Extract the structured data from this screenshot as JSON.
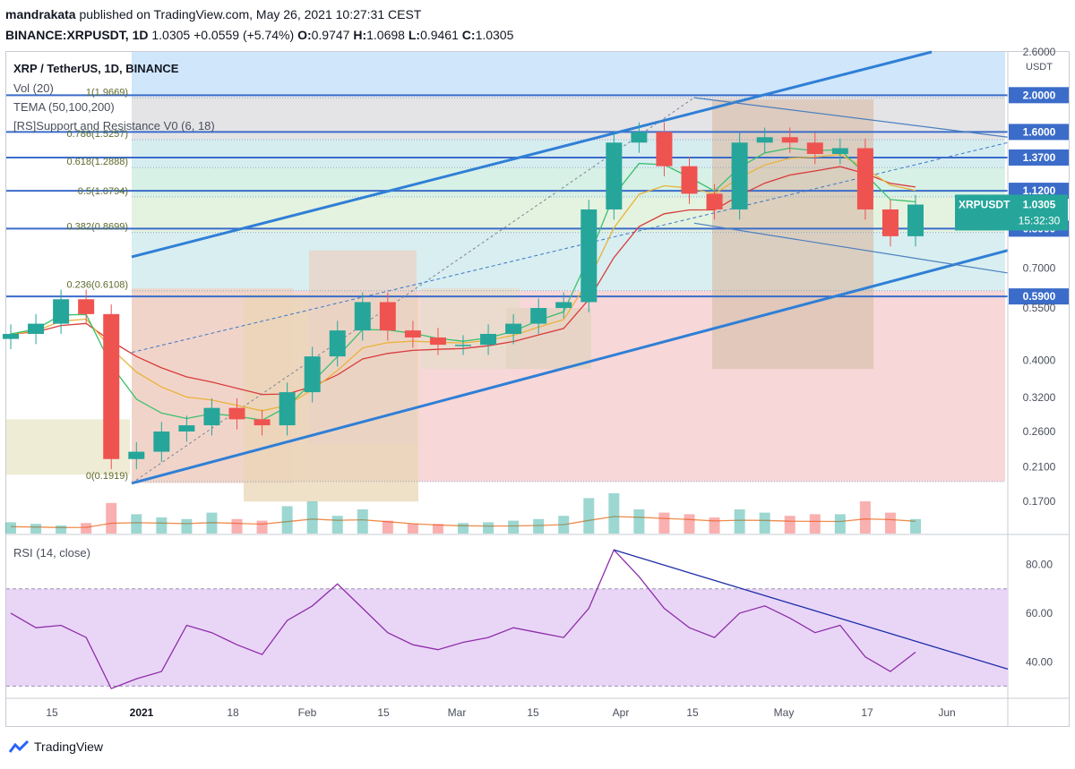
{
  "header": {
    "user": "mandrakata",
    "published_text": "published on TradingView.com, May 26, 2021 10:27:31 CEST",
    "symbol_line": "BINANCE:XRPUSDT, 1D",
    "last": "1.0305",
    "change": "+0.0559 (+5.74%)",
    "o_label": "O:",
    "o": "0.9747",
    "h_label": "H:",
    "h": "1.0698",
    "l_label": "L:",
    "l": "0.9461",
    "c_label": "C:",
    "c": "1.0305"
  },
  "legend": {
    "title": "XRP / TetherUS, 1D, BINANCE",
    "vol": "Vol (20)",
    "tema": "TEMA (50,100,200)",
    "sr": "[RS]Support and Resistance V0 (6, 18)",
    "rsi": "RSI (14, close)"
  },
  "footer": {
    "brand": "TradingView"
  },
  "colors": {
    "up": "#26a69a",
    "down": "#ef5350",
    "tema50": "#3cbf6e",
    "tema100": "#e8b33a",
    "tema200": "#d93b3b",
    "channel": "#2f7fd6",
    "level": "#3b6cc9",
    "rsi": "#8e2ea8",
    "rsi_band": "#e9d6f7"
  },
  "chart_data": [
    {
      "type": "candlestick",
      "symbol": "XRP / TetherUS",
      "exchange": "BINANCE",
      "interval": "1D",
      "scale": "log",
      "price_axis_unit": "USDT",
      "x_ticks": [
        "15",
        "2021",
        "18",
        "Feb",
        "15",
        "Mar",
        "15",
        "Apr",
        "15",
        "May",
        "17",
        "Jun"
      ],
      "y_ticks": [
        "2.6000",
        "2.0000",
        "1.6000",
        "1.3700",
        "1.1200",
        "0.8900",
        "0.7000",
        "0.5900",
        "0.5500",
        "0.4000",
        "0.3200",
        "0.2600",
        "0.2100",
        "0.1700"
      ],
      "y_range": [
        0.14,
        2.6
      ],
      "last_price_label": "XRPUSDT",
      "last_price": "1.0305",
      "countdown": "15:32:30",
      "fib_levels": [
        {
          "label": "1(1.9669)",
          "value": 1.9669
        },
        {
          "label": "0.786(1.5257)",
          "value": 1.5257
        },
        {
          "label": "0.618(1.2888)",
          "value": 1.2888
        },
        {
          "label": "0.5(1.0794)",
          "value": 1.0794
        },
        {
          "label": "0.382(0.8699)",
          "value": 0.8699
        },
        {
          "label": "0.236(0.6108)",
          "value": 0.6108
        },
        {
          "label": "0(0.1919)",
          "value": 0.1919
        }
      ],
      "horizontal_levels": [
        2.0,
        1.6,
        1.37,
        1.12,
        0.89,
        0.59
      ],
      "ohlc_last": {
        "o": 0.9747,
        "h": 1.0698,
        "l": 0.9461,
        "c": 1.0305
      },
      "closes_weekly": [
        0.47,
        0.5,
        0.58,
        0.53,
        0.22,
        0.23,
        0.26,
        0.27,
        0.3,
        0.28,
        0.27,
        0.33,
        0.41,
        0.48,
        0.57,
        0.48,
        0.46,
        0.44,
        0.44,
        0.47,
        0.5,
        0.55,
        0.57,
        1.0,
        1.5,
        1.6,
        1.3,
        1.1,
        1.0,
        1.5,
        1.55,
        1.5,
        1.4,
        1.45,
        1.0,
        0.85,
        1.03
      ]
    },
    {
      "type": "line",
      "name": "RSI (14, close)",
      "y_ticks": [
        "80.00",
        "60.00",
        "40.00"
      ],
      "y_range": [
        25,
        92
      ],
      "bands": [
        30,
        70
      ],
      "values_weekly": [
        60,
        54,
        55,
        50,
        29,
        33,
        36,
        55,
        52,
        47,
        43,
        57,
        63,
        72,
        62,
        52,
        47,
        45,
        48,
        50,
        54,
        52,
        50,
        62,
        86,
        75,
        62,
        54,
        50,
        60,
        63,
        58,
        52,
        55,
        42,
        36,
        44
      ]
    }
  ]
}
